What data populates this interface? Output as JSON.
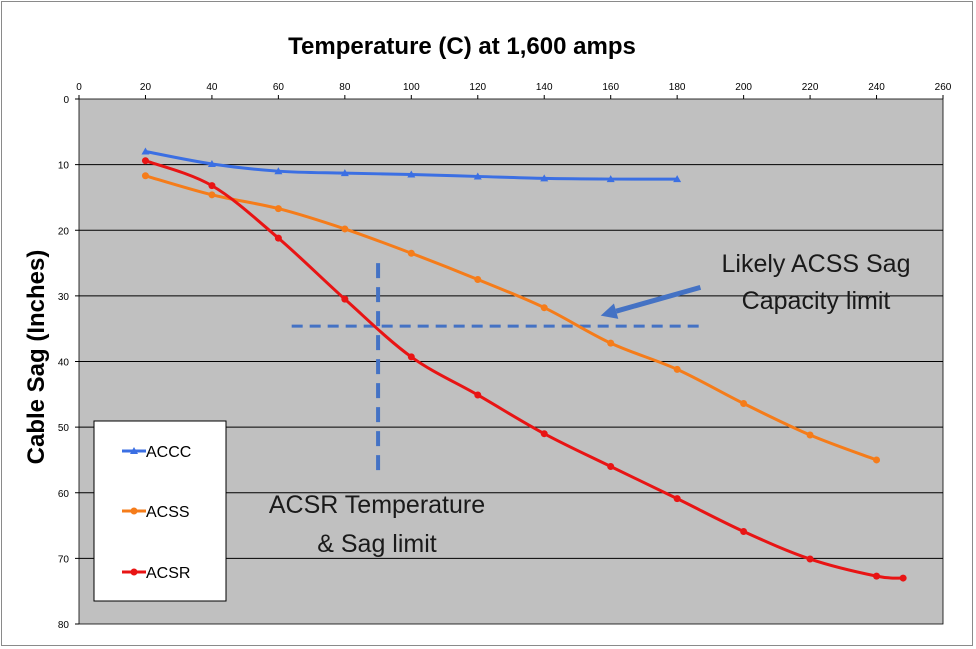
{
  "chart_data": {
    "type": "line",
    "title": "Temperature (C) at 1,600 amps",
    "xlabel": "",
    "ylabel": "Cable Sag (Inches)",
    "xlim": [
      0,
      260
    ],
    "ylim": [
      0,
      80
    ],
    "y_inverted": true,
    "x_axis_position": "top",
    "x_ticks": [
      0,
      20,
      40,
      60,
      80,
      100,
      120,
      140,
      160,
      180,
      200,
      220,
      240,
      260
    ],
    "y_ticks": [
      0,
      10,
      20,
      30,
      40,
      50,
      60,
      70,
      80
    ],
    "grid": "horizontal",
    "plot_background": "#c0c0c0",
    "legend_position": "bottom-left",
    "series": [
      {
        "name": "ACCC",
        "color": "#3b6fe3",
        "marker": "triangle",
        "x": [
          20,
          40,
          60,
          80,
          100,
          120,
          140,
          160,
          180
        ],
        "y": [
          8,
          9.9,
          11,
          11.3,
          11.5,
          11.8,
          12.1,
          12.2,
          12.2
        ]
      },
      {
        "name": "ACSS",
        "color": "#f57c1a",
        "marker": "circle",
        "x": [
          20,
          40,
          60,
          80,
          100,
          120,
          140,
          160,
          180,
          200,
          220,
          240
        ],
        "y": [
          11.7,
          14.6,
          16.7,
          19.8,
          23.5,
          27.5,
          31.8,
          37.2,
          41.2,
          46.4,
          51.2,
          55
        ]
      },
      {
        "name": "ACSR",
        "color": "#e81414",
        "marker": "circle",
        "x": [
          20,
          40,
          60,
          80,
          100,
          120,
          140,
          160,
          180,
          200,
          220,
          240,
          248
        ],
        "y": [
          9.4,
          13.2,
          21.2,
          30.5,
          39.3,
          45.1,
          51,
          56,
          60.9,
          65.9,
          70.1,
          72.7,
          73
        ]
      }
    ],
    "annotations": [
      {
        "id": "acss_limit",
        "text_lines": [
          "Likely ACSS Sag",
          "Capacity limit"
        ]
      },
      {
        "id": "acsr_limit",
        "text_lines": [
          "ACSR Temperature",
          "& Sag limit"
        ]
      }
    ],
    "reference_lines": {
      "horizontal_sag_y": 34.6,
      "horizontal_x_range": [
        64,
        188
      ],
      "vertical_temp_x": 90,
      "vertical_y_range": [
        25,
        57
      ],
      "color": "#4472c4",
      "style": "dashed"
    },
    "arrow": {
      "from": [
        187,
        28.7
      ],
      "to": [
        157,
        33
      ],
      "color": "#4472c4"
    }
  }
}
